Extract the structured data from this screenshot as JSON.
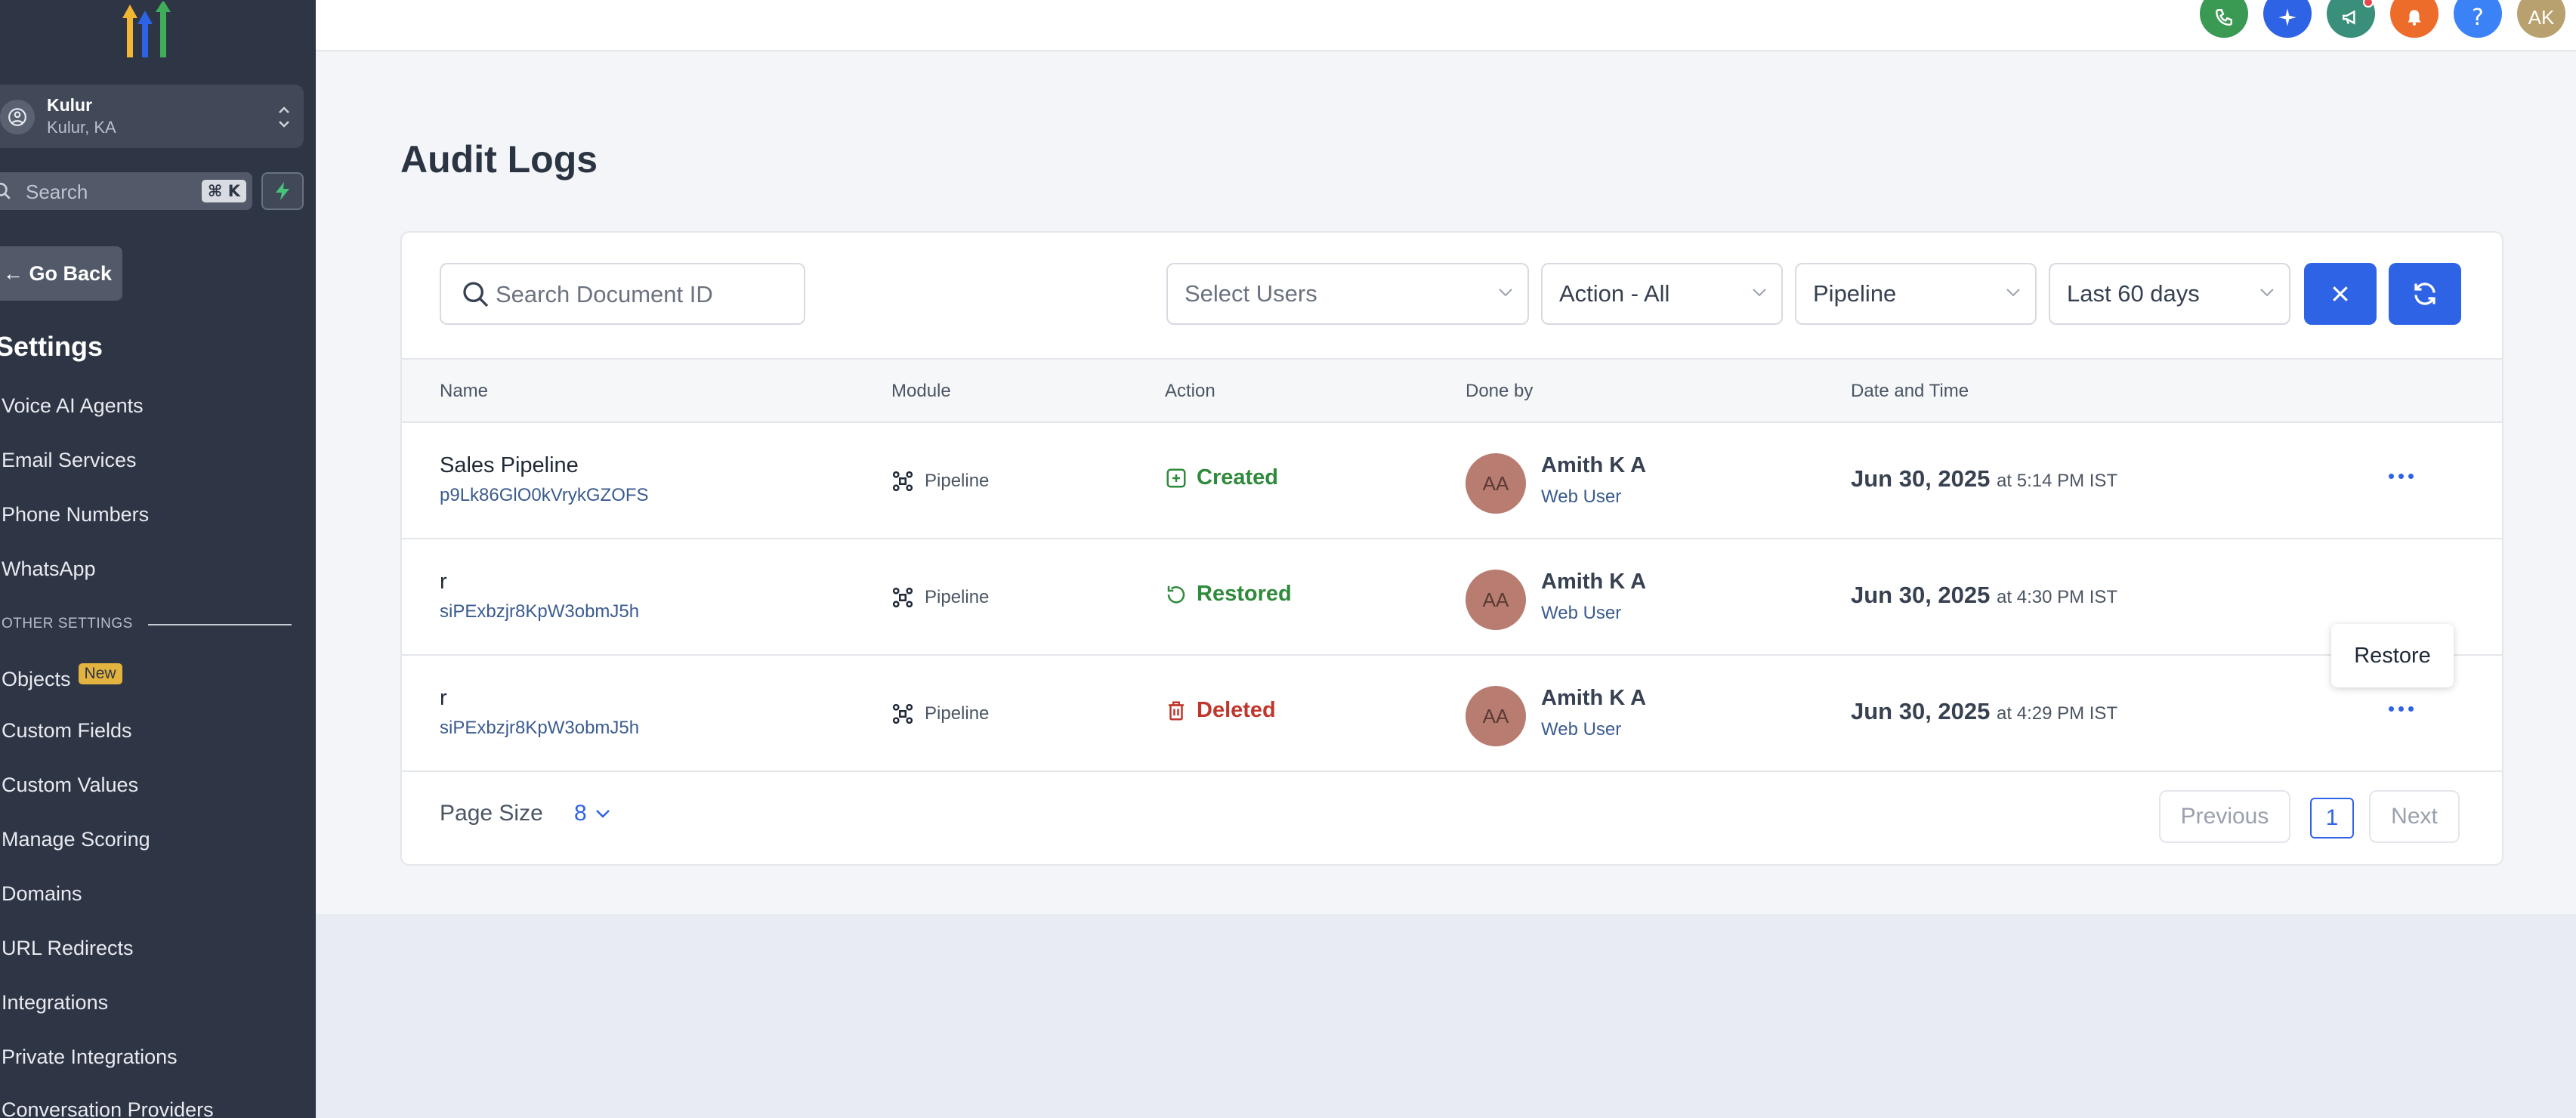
{
  "sidebar": {
    "location": {
      "name": "Kulur",
      "sub": "Kulur, KA"
    },
    "search": {
      "placeholder": "Search",
      "shortcut": "⌘ K"
    },
    "go_back": "Go Back",
    "settings_title": "Settings",
    "items": [
      {
        "label": "Voice AI Agents"
      },
      {
        "label": "Email Services"
      },
      {
        "label": "Phone Numbers"
      },
      {
        "label": "WhatsApp"
      }
    ],
    "section_label": "OTHER SETTINGS",
    "other_items": [
      {
        "label": "Objects",
        "badge": "New"
      },
      {
        "label": "Custom Fields"
      },
      {
        "label": "Custom Values"
      },
      {
        "label": "Manage Scoring"
      },
      {
        "label": "Domains"
      },
      {
        "label": "URL Redirects"
      },
      {
        "label": "Integrations"
      },
      {
        "label": "Private Integrations"
      },
      {
        "label": "Conversation Providers"
      }
    ]
  },
  "header": {
    "icons": [
      "phone-icon",
      "sparkle-icon",
      "megaphone-icon",
      "bell-icon",
      "help-icon",
      "user-avatar"
    ],
    "user_initials": "AK",
    "help_glyph": "?"
  },
  "page": {
    "title": "Audit Logs"
  },
  "filters": {
    "search_placeholder": "Search Document ID",
    "users": "Select Users",
    "action": "Action - All",
    "module": "Pipeline",
    "range": "Last 60 days"
  },
  "table": {
    "columns": [
      "Name",
      "Module",
      "Action",
      "Done by",
      "Date and Time"
    ],
    "rows": [
      {
        "name": "Sales Pipeline",
        "id": "p9Lk86GlO0kVrykGZOFS",
        "module": "Pipeline",
        "action": "Created",
        "initials": "AA",
        "user": "Amith K A",
        "role": "Web User",
        "date": "Jun 30, 2025",
        "time": "at 5:14 PM IST"
      },
      {
        "name": "r",
        "id": "siPExbzjr8KpW3obmJ5h",
        "module": "Pipeline",
        "action": "Restored",
        "initials": "AA",
        "user": "Amith K A",
        "role": "Web User",
        "date": "Jun 30, 2025",
        "time": "at 4:30 PM IST"
      },
      {
        "name": "r",
        "id": "siPExbzjr8KpW3obmJ5h",
        "module": "Pipeline",
        "action": "Deleted",
        "initials": "AA",
        "user": "Amith K A",
        "role": "Web User",
        "date": "Jun 30, 2025",
        "time": "at 4:29 PM IST"
      }
    ],
    "tooltip": "Restore"
  },
  "footer": {
    "page_size_label": "Page Size",
    "page_size": "8",
    "previous": "Previous",
    "page": "1",
    "next": "Next"
  },
  "colors": {
    "sidebar": "#2e3545",
    "primary": "#2f63e6",
    "created": "#2f8a3c",
    "restored": "#2f8a3c",
    "deleted": "#c0362c"
  }
}
